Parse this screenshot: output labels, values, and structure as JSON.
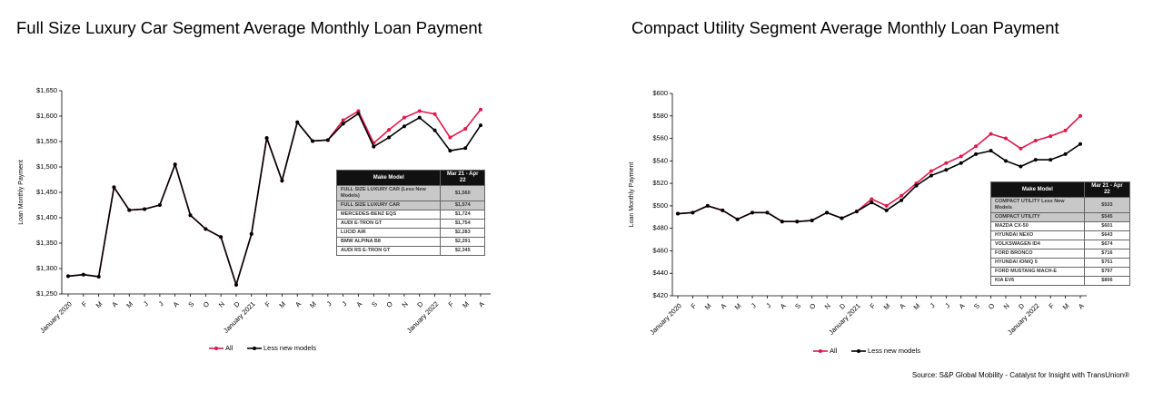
{
  "chart_data": [
    {
      "type": "line",
      "title": "Full Size Luxury Car Segment Average Monthly Loan Payment",
      "y_label": "Loan Monthly Payment",
      "categories": [
        "January 2020",
        "F",
        "M",
        "A",
        "M",
        "J",
        "J",
        "A",
        "S",
        "O",
        "N",
        "D",
        "January 2021",
        "F",
        "M",
        "A",
        "M",
        "J",
        "J",
        "A",
        "S",
        "O",
        "N",
        "D",
        "January 2022",
        "F",
        "M",
        "A"
      ],
      "series": [
        {
          "name": "All",
          "color": "#e0184a",
          "values": [
            1285,
            1288,
            1284,
            1460,
            1415,
            1417,
            1425,
            1505,
            1405,
            1378,
            1362,
            1268,
            1368,
            1557,
            1473,
            1588,
            1551,
            1553,
            1592,
            1610,
            1547,
            1573,
            1597,
            1610,
            1604,
            1558,
            1575,
            1613
          ]
        },
        {
          "name": "Less new models",
          "color": "#000000",
          "values": [
            1285,
            1288,
            1284,
            1460,
            1415,
            1417,
            1425,
            1505,
            1405,
            1378,
            1362,
            1268,
            1368,
            1557,
            1473,
            1588,
            1551,
            1553,
            1585,
            1605,
            1540,
            1558,
            1580,
            1597,
            1572,
            1532,
            1537,
            1582
          ]
        }
      ],
      "ylim": [
        1250,
        1650
      ],
      "yticks": [
        {
          "value": 1250,
          "label": "$1,250"
        },
        {
          "value": 1300,
          "label": "$1,300"
        },
        {
          "value": 1350,
          "label": "$1,350"
        },
        {
          "value": 1400,
          "label": "$1,400"
        },
        {
          "value": 1450,
          "label": "$1,450"
        },
        {
          "value": 1500,
          "label": "$1,500"
        },
        {
          "value": 1550,
          "label": "$1,550"
        },
        {
          "value": 1600,
          "label": "$1,600"
        },
        {
          "value": 1650,
          "label": "$1,650"
        }
      ],
      "table": {
        "header": [
          "Make Model",
          "Mar 21 - Apr 22"
        ],
        "rows": [
          [
            "FULL SIZE LUXURY CAR (Less New Models)",
            "$1,560"
          ],
          [
            "FULL SIZE LUXURY CAR",
            "$1,574"
          ],
          [
            "MERCEDES-BENZ EQS",
            "$1,724"
          ],
          [
            "AUDI E-TRON GT",
            "$1,754"
          ],
          [
            "LUCID AIR",
            "$2,283"
          ],
          [
            "BMW ALPINA B8",
            "$2,291"
          ],
          [
            "AUDI RS E-TRON GT",
            "$2,345"
          ]
        ]
      }
    },
    {
      "type": "line",
      "title": "Compact Utility Segment Average Monthly Loan Payment",
      "y_label": "Loan Monthly Payment",
      "categories": [
        "January 2020",
        "F",
        "M",
        "A",
        "M",
        "J",
        "J",
        "A",
        "S",
        "O",
        "N",
        "D",
        "January 2021",
        "F",
        "M",
        "A",
        "M",
        "J",
        "J",
        "A",
        "S",
        "O",
        "N",
        "D",
        "January 2022",
        "F",
        "M",
        "A"
      ],
      "series": [
        {
          "name": "All",
          "color": "#e0184a",
          "values": [
            493,
            494,
            500,
            496,
            488,
            494,
            494,
            486,
            486,
            487,
            494,
            489,
            495,
            506,
            500,
            509,
            520,
            531,
            538,
            544,
            553,
            564,
            560,
            551,
            558,
            562,
            567,
            580
          ]
        },
        {
          "name": "Less new models",
          "color": "#000000",
          "values": [
            493,
            494,
            500,
            496,
            488,
            494,
            494,
            486,
            486,
            487,
            494,
            489,
            495,
            503,
            496,
            505,
            518,
            527,
            532,
            538,
            546,
            549,
            540,
            535,
            541,
            541,
            546,
            555
          ]
        }
      ],
      "ylim": [
        420,
        600
      ],
      "yticks": [
        {
          "value": 420,
          "label": "$420"
        },
        {
          "value": 440,
          "label": "$440"
        },
        {
          "value": 460,
          "label": "$460"
        },
        {
          "value": 480,
          "label": "$480"
        },
        {
          "value": 500,
          "label": "$500"
        },
        {
          "value": 520,
          "label": "$520"
        },
        {
          "value": 540,
          "label": "$540"
        },
        {
          "value": 560,
          "label": "$560"
        },
        {
          "value": 580,
          "label": "$580"
        },
        {
          "value": 600,
          "label": "$600"
        }
      ],
      "table": {
        "header": [
          "Make Model",
          "Mar 21 - Apr 22"
        ],
        "rows": [
          [
            "COMPACT UTILITY Less New Models",
            "$533"
          ],
          [
            "COMPACT UTILITY",
            "$545"
          ],
          [
            "MAZDA CX-50",
            "$601"
          ],
          [
            "HYUNDAI NEXO",
            "$643"
          ],
          [
            "VOLKSWAGEN ID4",
            "$674"
          ],
          [
            "FORD BRONCO",
            "$716"
          ],
          [
            "HYUNDAI IONIQ 5",
            "$751"
          ],
          [
            "FORD MUSTANG MACH-E",
            "$797"
          ],
          [
            "KIA EV6",
            "$806"
          ]
        ]
      }
    }
  ],
  "source": "Source: S&P Global Mobility - Catalyst for Insight with TransUnion®"
}
